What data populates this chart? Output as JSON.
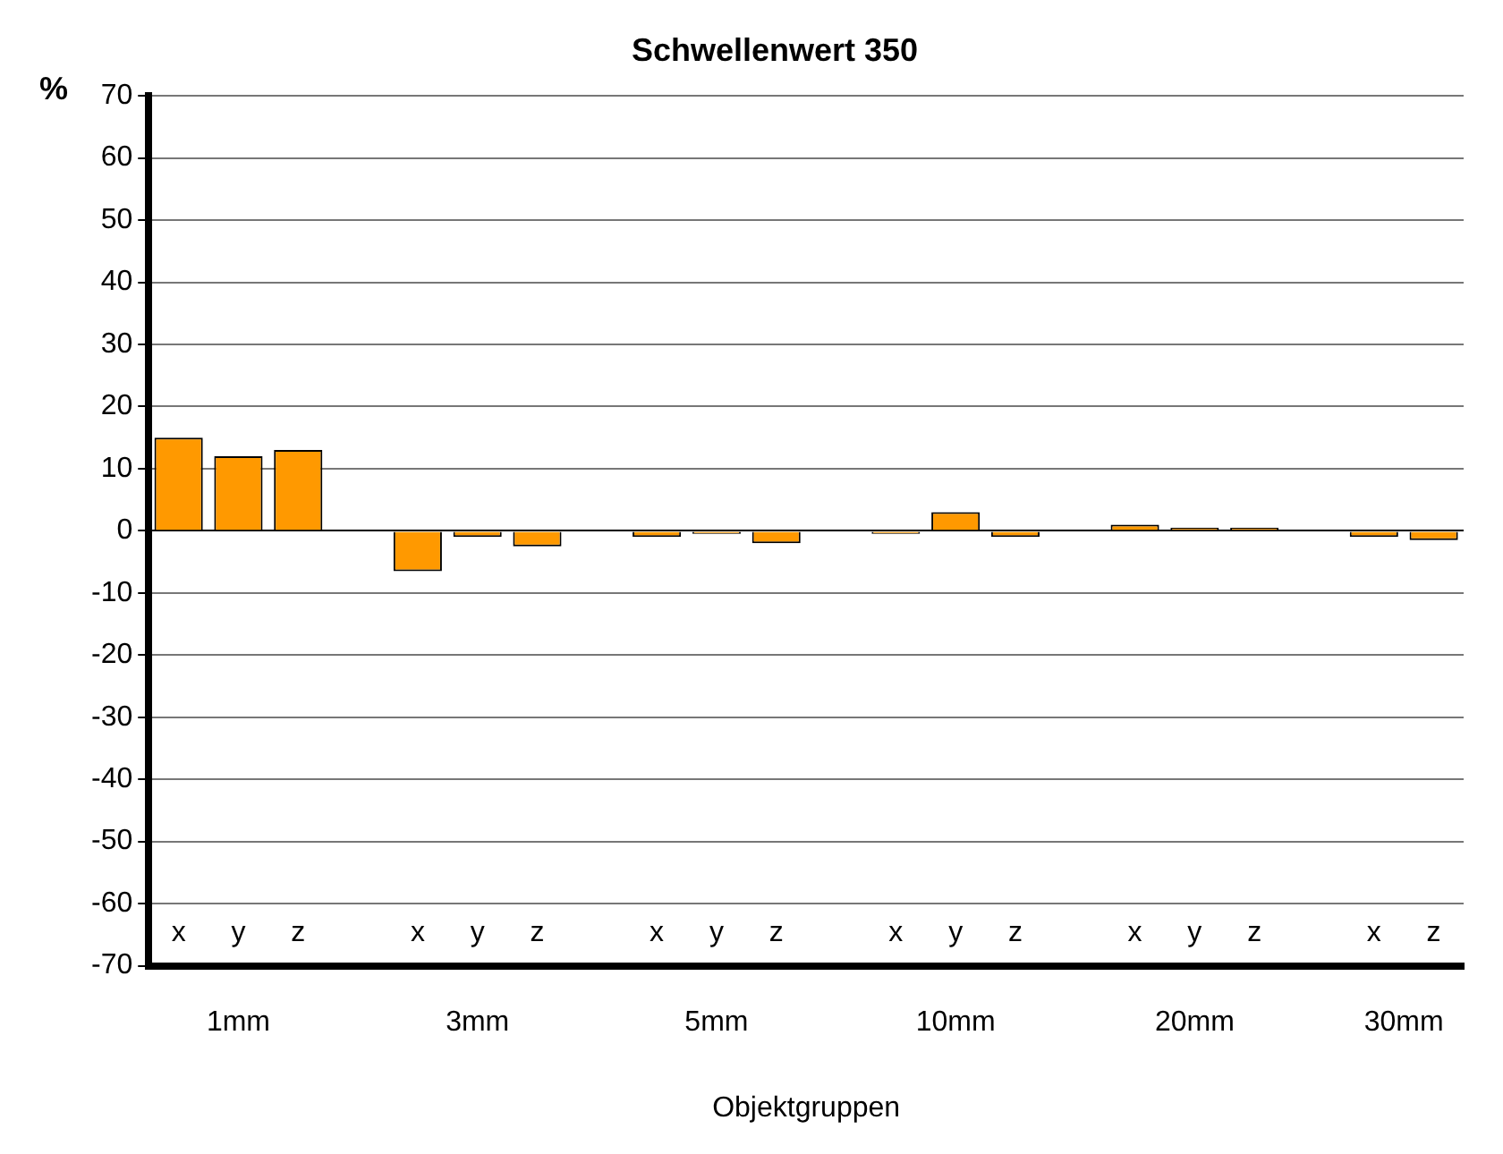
{
  "chart_data": {
    "type": "bar",
    "title": "Schwellenwert 350",
    "xlabel": "Objektgruppen",
    "ylabel": "%",
    "categories": [
      "x",
      "y",
      "z",
      null,
      "x",
      "y",
      "z",
      null,
      "x",
      "y",
      "z",
      null,
      "x",
      "y",
      "z",
      null,
      "x",
      "y",
      "z",
      null,
      "x",
      "z"
    ],
    "values": [
      15,
      12,
      13,
      null,
      -6.5,
      -1,
      -2.5,
      null,
      -1,
      -0.5,
      -2,
      null,
      -0.5,
      3,
      -1,
      null,
      1,
      0.5,
      0.5,
      null,
      -1,
      -1.5
    ],
    "color": "#ff9900",
    "annotations": [
      "1mm",
      "3mm",
      "5mm",
      "10mm",
      "20mm",
      "30mm"
    ],
    "ylim": [
      -70,
      70
    ],
    "yticks": [
      -70,
      -60,
      -50,
      -40,
      -30,
      -20,
      -10,
      0,
      10,
      20,
      30,
      40,
      50,
      60,
      70
    ],
    "grid": "y"
  }
}
